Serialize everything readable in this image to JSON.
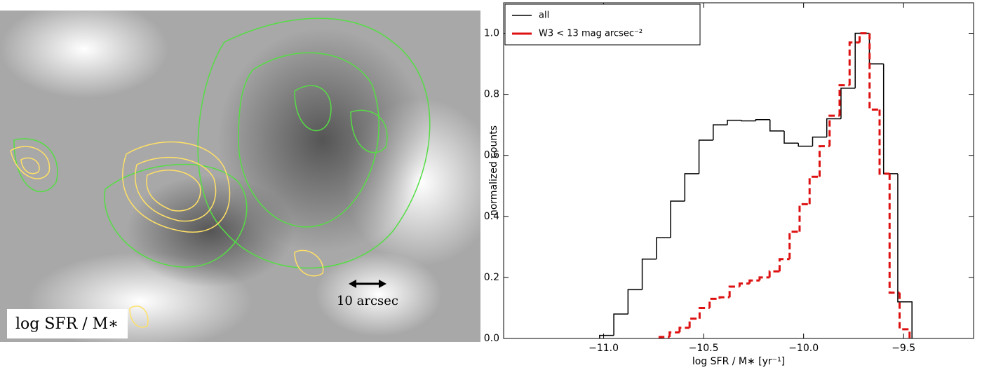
{
  "image_panel": {
    "label": "log SFR / M∗",
    "scale_bar": "10 arcsec"
  },
  "chart_data": {
    "type": "step",
    "xlabel": "log SFR / M∗ [yr⁻¹]",
    "ylabel": "normalized counts",
    "xlim": [
      -11.5,
      -9.15
    ],
    "ylim": [
      0,
      1.1
    ],
    "xticks": [
      {
        "value": -11,
        "label": "−11.0"
      },
      {
        "value": -10.5,
        "label": "−10.5"
      },
      {
        "value": -10,
        "label": "−10.0"
      },
      {
        "value": -9.5,
        "label": "−9.5"
      }
    ],
    "yticks": [
      {
        "value": 0,
        "label": "0.0"
      },
      0.2,
      0.4,
      0.6,
      0.8,
      {
        "value": 1,
        "label": "1.0"
      }
    ],
    "legend": "upper left",
    "series": [
      {
        "name": "all",
        "color": "#000000",
        "dash": false,
        "bins": [
          -11.02,
          -10.949,
          -10.878,
          -10.807,
          -10.736,
          -10.665,
          -10.594,
          -10.523,
          -10.452,
          -10.381,
          -10.31,
          -10.239,
          -10.168,
          -10.097,
          -10.026,
          -9.955,
          -9.884,
          -9.813,
          -9.742,
          -9.671,
          -9.6,
          -9.529,
          -9.458
        ],
        "values": [
          0.01,
          0.08,
          0.16,
          0.26,
          0.33,
          0.45,
          0.54,
          0.65,
          0.7,
          0.715,
          0.713,
          0.717,
          0.68,
          0.64,
          0.63,
          0.66,
          0.72,
          0.82,
          1.0,
          0.9,
          0.54,
          0.12
        ]
      },
      {
        "name": "W3 < 13 mag arcsec⁻²",
        "color": "#dd1111",
        "dash": true,
        "bins": [
          -10.72,
          -10.67,
          -10.62,
          -10.57,
          -10.52,
          -10.47,
          -10.42,
          -10.37,
          -10.32,
          -10.27,
          -10.22,
          -10.17,
          -10.12,
          -10.07,
          -10.02,
          -9.97,
          -9.92,
          -9.87,
          -9.82,
          -9.77,
          -9.72,
          -9.67,
          -9.62,
          -9.57,
          -9.52,
          -9.47
        ],
        "values": [
          0.005,
          0.02,
          0.035,
          0.065,
          0.1,
          0.13,
          0.135,
          0.17,
          0.18,
          0.19,
          0.2,
          0.22,
          0.26,
          0.35,
          0.44,
          0.53,
          0.63,
          0.73,
          0.83,
          0.97,
          1.0,
          0.75,
          0.54,
          0.15,
          0.03
        ]
      }
    ]
  }
}
